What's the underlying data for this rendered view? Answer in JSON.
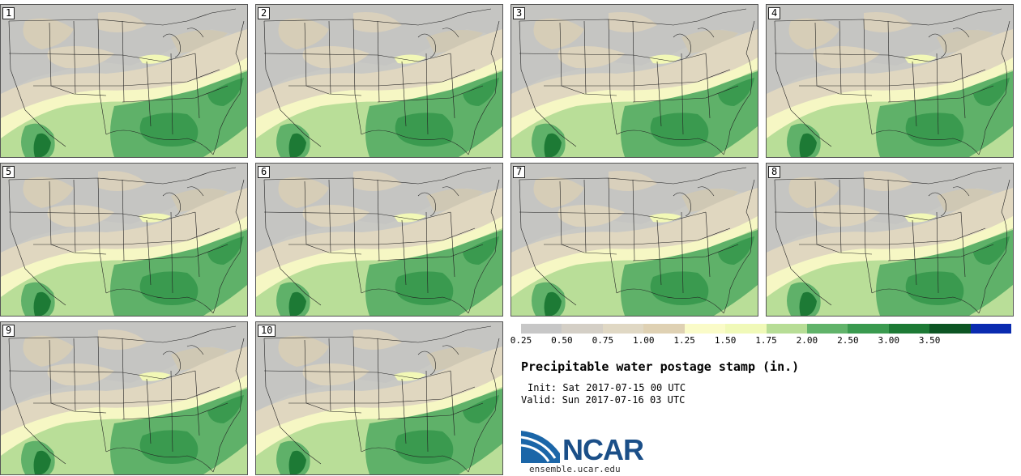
{
  "panels": [
    {
      "label": "1"
    },
    {
      "label": "2"
    },
    {
      "label": "3"
    },
    {
      "label": "4"
    },
    {
      "label": "5"
    },
    {
      "label": "6"
    },
    {
      "label": "7"
    },
    {
      "label": "8"
    },
    {
      "label": "9"
    },
    {
      "label": "10"
    }
  ],
  "colorbar": {
    "colors": [
      "#c7c7c7",
      "#d4cfc6",
      "#e0d8c4",
      "#dfd1b3",
      "#fafbc8",
      "#f0f9b8",
      "#b7dd96",
      "#61b36a",
      "#3a9a4f",
      "#1d7a35",
      "#0d5524",
      "#0a2bb0"
    ],
    "ticks": [
      "0.25",
      "0.50",
      "0.75",
      "1.00",
      "1.25",
      "1.50",
      "1.75",
      "2.00",
      "2.50",
      "3.00",
      "3.50"
    ]
  },
  "title": "Precipitable water postage stamp (in.)",
  "init": "Init: Sat 2017-07-15 00 UTC",
  "valid": "Valid: Sun 2017-07-16 03 UTC",
  "logo": {
    "text": "NCAR",
    "site": "ensemble.ucar.edu"
  }
}
